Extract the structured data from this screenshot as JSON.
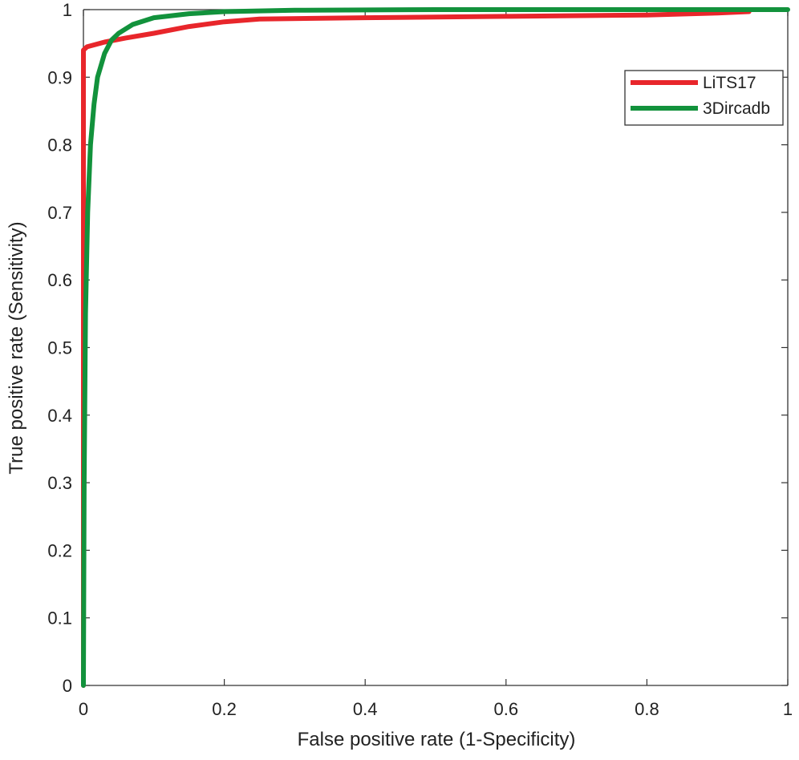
{
  "chart_data": {
    "type": "line",
    "title": "",
    "xlabel": "False positive rate (1-Specificity)",
    "ylabel": "True positive rate (Sensitivity)",
    "xlim": [
      0,
      1
    ],
    "ylim": [
      0,
      1
    ],
    "x_ticks": [
      0,
      0.2,
      0.4,
      0.6,
      0.8,
      1
    ],
    "x_tick_labels": [
      "0",
      "0.2",
      "0.4",
      "0.6",
      "0.8",
      "1"
    ],
    "y_ticks": [
      0,
      0.1,
      0.2,
      0.3,
      0.4,
      0.5,
      0.6,
      0.7,
      0.8,
      0.9,
      1
    ],
    "y_tick_labels": [
      "0",
      "0.1",
      "0.2",
      "0.3",
      "0.4",
      "0.5",
      "0.6",
      "0.7",
      "0.8",
      "0.9",
      "1"
    ],
    "grid": false,
    "legend_position": "top-right",
    "series": [
      {
        "name": "LiTS17",
        "color": "#e8262b",
        "x": [
          0,
          0,
          0,
          0.005,
          0.03,
          0.06,
          0.1,
          0.15,
          0.2,
          0.25,
          0.4,
          0.6,
          0.8,
          0.9,
          0.945
        ],
        "y": [
          0,
          0.6,
          0.94,
          0.945,
          0.952,
          0.958,
          0.965,
          0.975,
          0.982,
          0.986,
          0.988,
          0.99,
          0.992,
          0.995,
          0.997
        ]
      },
      {
        "name": "3Dircadb",
        "color": "#12923c",
        "x": [
          0,
          0.001,
          0.003,
          0.006,
          0.01,
          0.015,
          0.02,
          0.03,
          0.04,
          0.05,
          0.07,
          0.1,
          0.15,
          0.2,
          0.3,
          0.5,
          1.0
        ],
        "y": [
          0,
          0.3,
          0.55,
          0.7,
          0.8,
          0.86,
          0.9,
          0.935,
          0.955,
          0.965,
          0.978,
          0.988,
          0.994,
          0.997,
          0.999,
          1.0,
          1.0
        ]
      }
    ]
  }
}
